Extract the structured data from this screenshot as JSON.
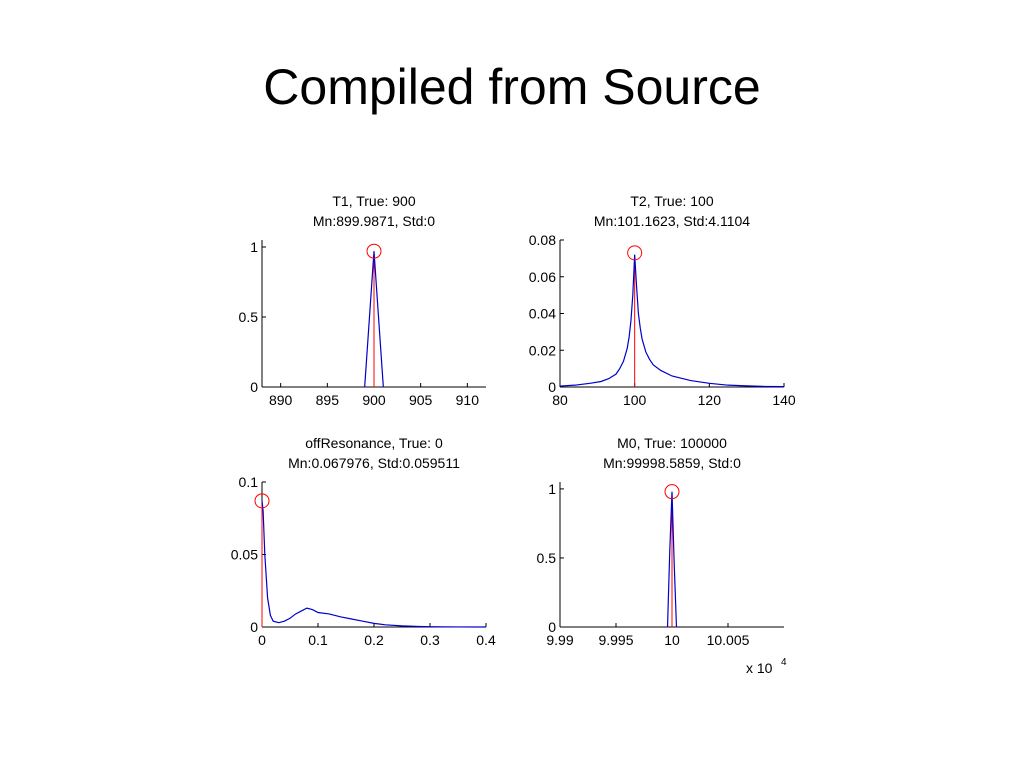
{
  "slide": {
    "title": "Compiled from Source"
  },
  "colors": {
    "histogram": "#0000cc",
    "true_line": "#ff0000",
    "mode_marker": "#ff0000",
    "axis": "#000000"
  },
  "chart_data": [
    {
      "type": "line",
      "title": "T1, True: 900",
      "subtitle": "Mn:899.9871, Std:0",
      "xlim": [
        888,
        912
      ],
      "ylim": [
        0,
        1.05
      ],
      "xticks": [
        890,
        895,
        900,
        905,
        910
      ],
      "xtick_labels": [
        "890",
        "895",
        "900",
        "905",
        "910"
      ],
      "yticks": [
        0,
        0.5,
        1
      ],
      "ytick_labels": [
        "0",
        "0.5",
        "1"
      ],
      "x_exponent": "",
      "true_value": 900,
      "true_line_height": 0.95,
      "mode_marker": {
        "x": 900,
        "y": 0.97
      },
      "series": [
        {
          "x": [
            899,
            900,
            901
          ],
          "y": [
            0,
            0.97,
            0
          ]
        }
      ]
    },
    {
      "type": "line",
      "title": "T2, True: 100",
      "subtitle": "Mn:101.1623, Std:4.1104",
      "xlim": [
        80,
        140
      ],
      "ylim": [
        0,
        0.08
      ],
      "xticks": [
        80,
        100,
        120,
        140
      ],
      "xtick_labels": [
        "80",
        "100",
        "120",
        "140"
      ],
      "yticks": [
        0,
        0.02,
        0.04,
        0.06,
        0.08
      ],
      "ytick_labels": [
        "0",
        "0.02",
        "0.04",
        "0.06",
        "0.08"
      ],
      "x_exponent": "",
      "true_value": 100,
      "true_line_height": 0.07,
      "mode_marker": {
        "x": 100,
        "y": 0.073
      },
      "series": [
        {
          "x": [
            80,
            84,
            88,
            91,
            93,
            95,
            96,
            97,
            98,
            98.5,
            99,
            99.5,
            100,
            100.5,
            101,
            101.5,
            102,
            103,
            104,
            105,
            107,
            110,
            115,
            120,
            125,
            130,
            135,
            140
          ],
          "y": [
            0.0005,
            0.001,
            0.002,
            0.003,
            0.0045,
            0.007,
            0.01,
            0.014,
            0.021,
            0.027,
            0.036,
            0.05,
            0.072,
            0.055,
            0.04,
            0.032,
            0.026,
            0.019,
            0.015,
            0.012,
            0.009,
            0.006,
            0.0035,
            0.002,
            0.001,
            0.0006,
            0.0003,
            0.0002
          ]
        }
      ]
    },
    {
      "type": "line",
      "title": "offResonance, True: 0",
      "subtitle": "Mn:0.067976, Std:0.059511",
      "xlim": [
        0,
        0.4
      ],
      "ylim": [
        0,
        0.1
      ],
      "xticks": [
        0,
        0.1,
        0.2,
        0.3,
        0.4
      ],
      "xtick_labels": [
        "0",
        "0.1",
        "0.2",
        "0.3",
        "0.4"
      ],
      "yticks": [
        0,
        0.05,
        0.1
      ],
      "ytick_labels": [
        "0",
        "0.05",
        "0.1"
      ],
      "x_exponent": "",
      "true_value": 0,
      "true_line_height": 0.085,
      "mode_marker": {
        "x": 0,
        "y": 0.087
      },
      "series": [
        {
          "x": [
            0,
            0.002,
            0.005,
            0.01,
            0.015,
            0.02,
            0.03,
            0.04,
            0.05,
            0.06,
            0.07,
            0.08,
            0.09,
            0.1,
            0.12,
            0.14,
            0.16,
            0.18,
            0.2,
            0.22,
            0.25,
            0.28,
            0.3,
            0.32,
            0.35,
            0.4
          ],
          "y": [
            0.087,
            0.08,
            0.05,
            0.02,
            0.008,
            0.004,
            0.003,
            0.004,
            0.006,
            0.009,
            0.011,
            0.013,
            0.012,
            0.01,
            0.009,
            0.007,
            0.0055,
            0.004,
            0.0025,
            0.0015,
            0.0008,
            0.0004,
            0.0002,
            0.0001,
            5e-05,
            0
          ]
        }
      ]
    },
    {
      "type": "line",
      "title": "M0, True: 100000",
      "subtitle": "Mn:99998.5859, Std:0",
      "xlim": [
        9.99,
        10.01
      ],
      "ylim": [
        0,
        1.05
      ],
      "xticks": [
        9.99,
        9.995,
        10,
        10.005
      ],
      "xtick_labels": [
        "9.99",
        "9.995",
        "10",
        "10.005"
      ],
      "yticks": [
        0,
        0.5,
        1
      ],
      "ytick_labels": [
        "0",
        "0.5",
        "1"
      ],
      "x_exponent": "x 10^4",
      "x_exponent_base": "x 10",
      "x_exponent_power": "4",
      "true_value": 10,
      "true_line_height": 0.97,
      "mode_marker": {
        "x": 10,
        "y": 0.98
      },
      "series": [
        {
          "x": [
            9.9996,
            9.9998,
            10.0,
            10.0002,
            10.0004
          ],
          "y": [
            0,
            0.55,
            0.98,
            0.45,
            0
          ]
        }
      ]
    }
  ]
}
